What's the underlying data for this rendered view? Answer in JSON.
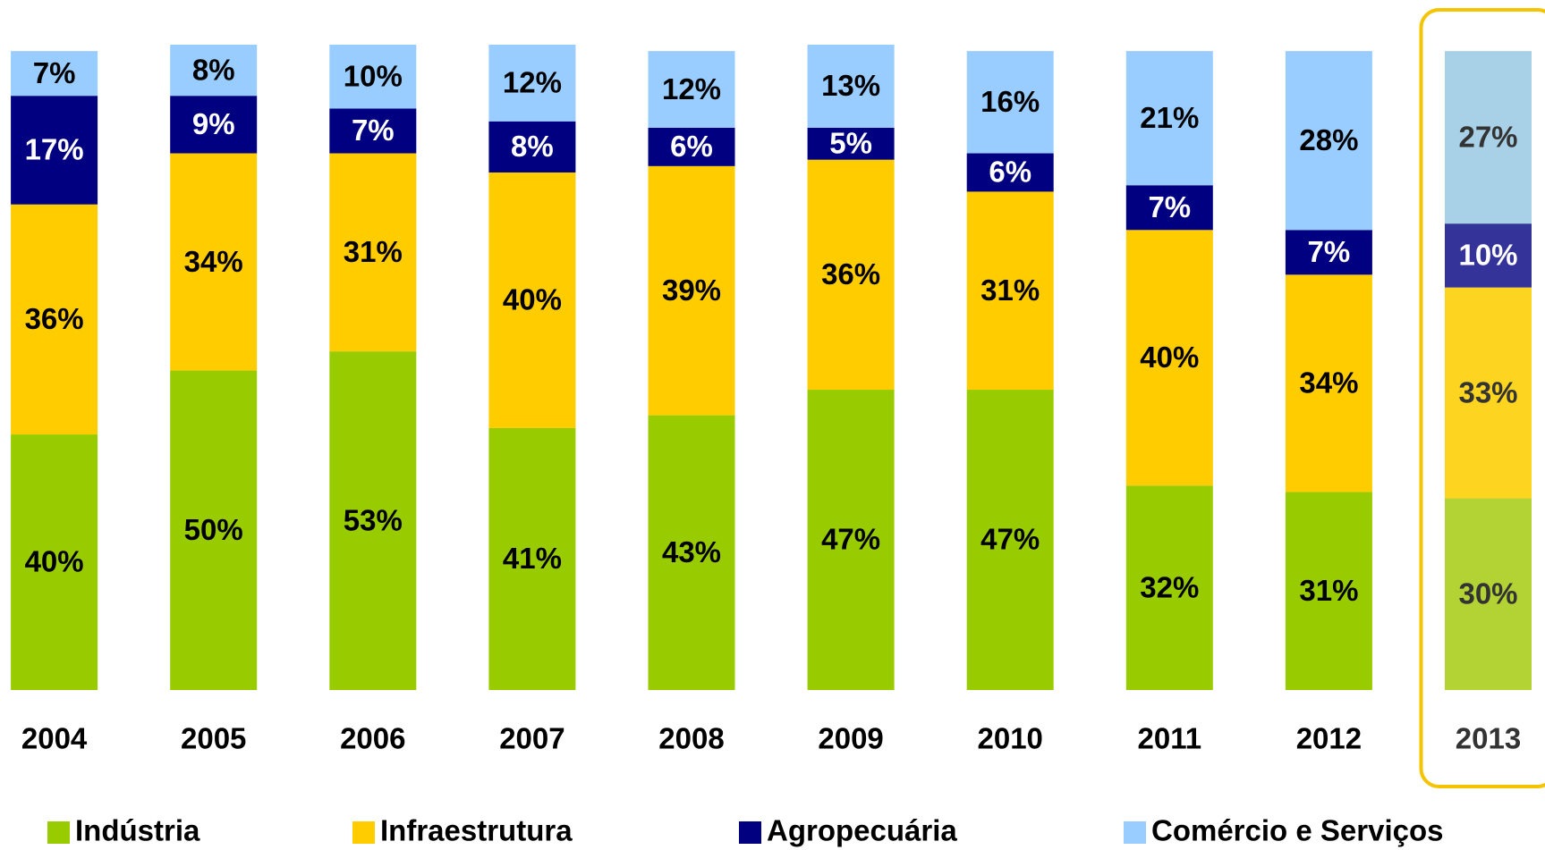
{
  "chart_data": {
    "type": "stacked_bar",
    "categories": [
      "2004",
      "2005",
      "2006",
      "2007",
      "2008",
      "2009",
      "2010",
      "2011",
      "2012",
      "2013"
    ],
    "highlighted_category": "2013",
    "legend_position": "bottom",
    "series": [
      {
        "name": "Indústria",
        "color": "#99cc00",
        "highlight_color": "#b3d334",
        "values": [
          40,
          50,
          53,
          41,
          43,
          47,
          47,
          32,
          31,
          30
        ],
        "value_labels": [
          "40%",
          "50%",
          "53%",
          "41%",
          "43%",
          "47%",
          "47%",
          "32%",
          "31%",
          "30%"
        ]
      },
      {
        "name": "Infraestrutura",
        "color": "#ffcc00",
        "highlight_color": "#fdd521",
        "values": [
          36,
          34,
          31,
          40,
          39,
          36,
          31,
          40,
          34,
          33
        ],
        "value_labels": [
          "36%",
          "34%",
          "31%",
          "40%",
          "39%",
          "36%",
          "31%",
          "40%",
          "34%",
          "33%"
        ]
      },
      {
        "name": "Agropecuária",
        "color": "#000080",
        "highlight_color": "#333399",
        "values": [
          17,
          9,
          7,
          8,
          6,
          5,
          6,
          7,
          7,
          10
        ],
        "value_labels": [
          "17%",
          "9%",
          "7%",
          "8%",
          "6%",
          "5%",
          "6%",
          "7%",
          "7%",
          "10%"
        ]
      },
      {
        "name": "Comércio e Serviços",
        "color": "#99ccff",
        "highlight_color": "#a8d0e6",
        "values": [
          7,
          8,
          10,
          12,
          12,
          13,
          16,
          21,
          28,
          27
        ],
        "value_labels": [
          "7%",
          "8%",
          "10%",
          "12%",
          "12%",
          "13%",
          "16%",
          "21%",
          "28%",
          "27%"
        ]
      }
    ]
  }
}
